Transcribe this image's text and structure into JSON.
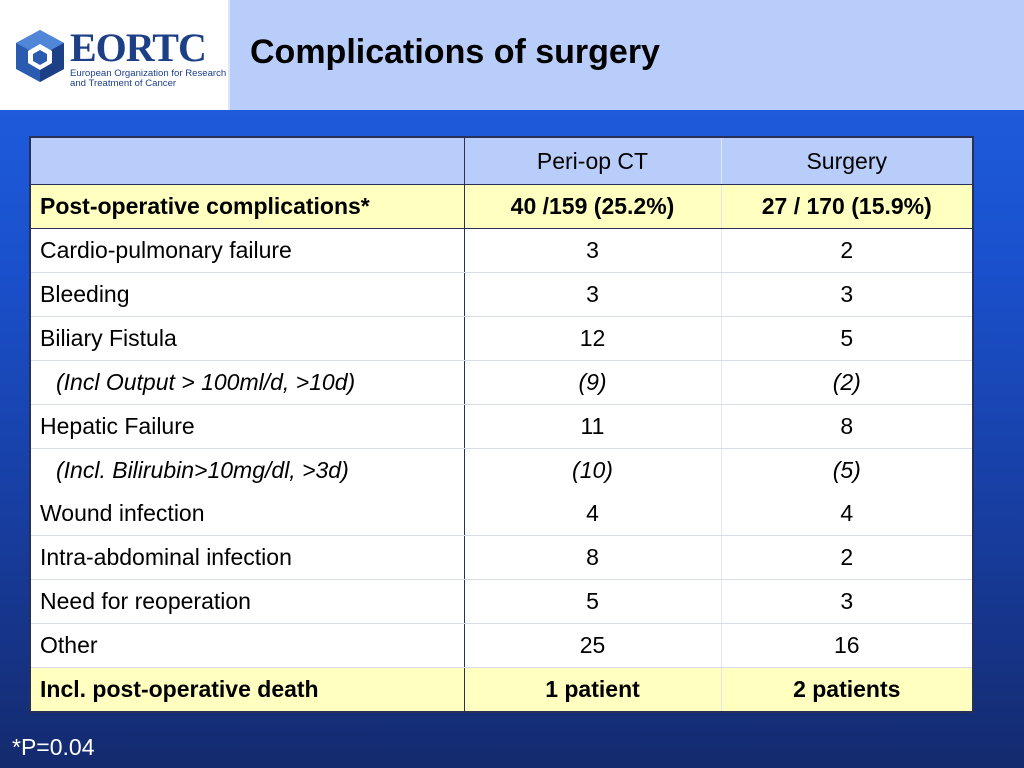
{
  "header": {
    "logo": {
      "wordmark": "EORTC",
      "subtitle": "European Organization for Research and Treatment of Cancer"
    },
    "title": "Complications of surgery"
  },
  "table": {
    "columns": [
      "",
      "Peri-op CT",
      "Surgery"
    ],
    "rows": [
      {
        "label": "Post-operative complications*",
        "periop": "40 /159 (25.2%)",
        "surgery": "27 / 170 (15.9%)",
        "style": "highlight"
      },
      {
        "label": "Cardio-pulmonary failure",
        "periop": "3",
        "surgery": "2"
      },
      {
        "label": "Bleeding",
        "periop": "3",
        "surgery": "3"
      },
      {
        "label": "Biliary Fistula",
        "periop": "12",
        "surgery": "5"
      },
      {
        "label": "(Incl Output > 100ml/d, >10d)",
        "periop": "(9)",
        "surgery": "(2)",
        "style": "italic"
      },
      {
        "label": "Hepatic Failure",
        "periop": "11",
        "surgery": "8"
      },
      {
        "label": "(Incl. Bilirubin>10mg/dl, >3d)",
        "periop": "(10)",
        "surgery": "(5)",
        "style": "italic"
      },
      {
        "label": "Wound infection",
        "periop": "4",
        "surgery": "4"
      },
      {
        "label": "Intra-abdominal infection",
        "periop": "8",
        "surgery": "2"
      },
      {
        "label": "Need for reoperation",
        "periop": "5",
        "surgery": "3"
      },
      {
        "label": "Other",
        "periop": "25",
        "surgery": "16"
      },
      {
        "label": "Incl. post-operative death",
        "periop": "1 patient",
        "surgery": "2 patients",
        "style": "highlight"
      }
    ]
  },
  "footnote": "*P=0.04",
  "colors": {
    "header_bg": "#b9cdfb",
    "highlight_row": "#ffffc0",
    "background_top": "#1f63e6",
    "background_bottom": "#142a6e",
    "logo_blue": "#1d3f86"
  }
}
